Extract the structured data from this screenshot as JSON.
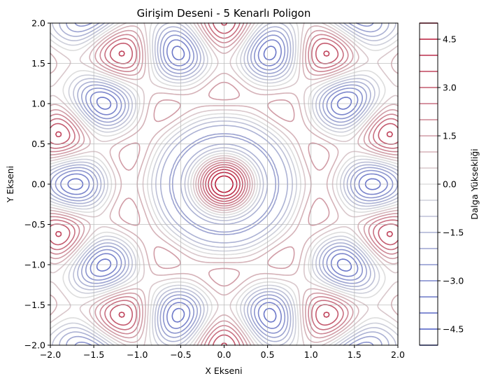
{
  "chart_data": {
    "type": "contour",
    "title": "Girişim Deseni - 5 Kenarlı Poligon",
    "xlabel": "X Ekseni",
    "ylabel": "Y Ekseni",
    "xlim": [
      -2.0,
      2.0
    ],
    "ylim": [
      -2.0,
      2.0
    ],
    "x_ticks": [
      "−2.0",
      "−1.5",
      "−1.0",
      "−0.5",
      "0.0",
      "0.5",
      "1.0",
      "1.5",
      "2.0"
    ],
    "y_ticks": [
      "−2.0",
      "−1.5",
      "−1.0",
      "−0.5",
      "0.0",
      "0.5",
      "1.0",
      "1.5",
      "2.0"
    ],
    "grid": true,
    "function": "sum over 5 regular-polygon directions k (angles 2πk/5) of cos(2π·(x·cos θk + y·sin θk))",
    "levels": [
      -5.0,
      -4.5,
      -4.0,
      -3.5,
      -3.0,
      -2.5,
      -2.0,
      -1.5,
      -1.0,
      -0.5,
      0.0,
      0.5,
      1.0,
      1.5,
      2.0,
      2.5,
      3.0,
      3.5,
      4.0,
      4.5,
      5.0
    ],
    "colormap": "coolwarm",
    "colormap_low": "#3b4cc0",
    "colormap_mid": "#dddddd",
    "colormap_high": "#b40426",
    "colorbar": {
      "label": "Dalga Yüksekliği",
      "ticks": [
        "4.5",
        "3.0",
        "1.5",
        "0.0",
        "−1.5",
        "−3.0",
        "−4.5"
      ],
      "tick_values": [
        4.5,
        3.0,
        1.5,
        0.0,
        -1.5,
        -3.0,
        -4.5
      ],
      "range": [
        -5.0,
        5.0
      ]
    }
  }
}
